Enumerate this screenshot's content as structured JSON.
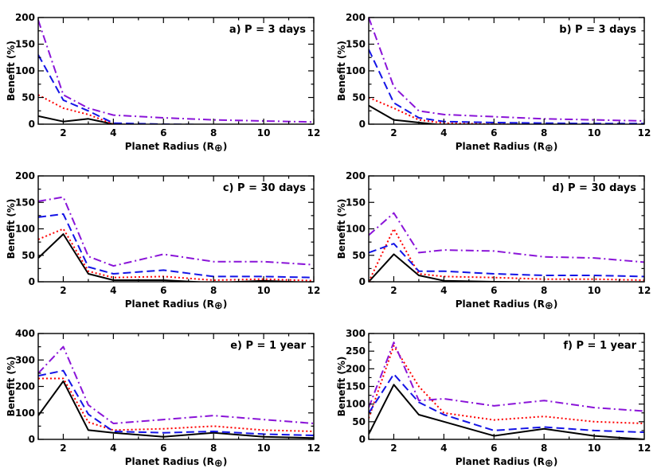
{
  "figure": {
    "x_label": "Planet Radius (R",
    "x_label_symbol": "⊕",
    "x_label_close": ")",
    "y_label": "Benefit (%)",
    "x_ticks": [
      2,
      4,
      6,
      8,
      10,
      12
    ],
    "xlim": [
      1,
      12
    ]
  },
  "chart_data": [
    {
      "type": "line",
      "panel": "a",
      "title": "a) P = 3 days",
      "ylim": [
        0,
        200
      ],
      "y_ticks": [
        0,
        50,
        100,
        150,
        200
      ],
      "x": [
        1,
        2,
        3,
        4,
        6,
        8,
        10,
        12
      ],
      "series": [
        {
          "name": "black-solid",
          "color": "#000000",
          "dash": "",
          "values": [
            15,
            5,
            10,
            0,
            -3,
            -3,
            -3,
            -3
          ]
        },
        {
          "name": "red-dotted",
          "color": "#ff0000",
          "dash": "2,3",
          "values": [
            55,
            30,
            18,
            0,
            -2,
            -3,
            -3,
            -3
          ]
        },
        {
          "name": "blue-dashed",
          "color": "#1414e6",
          "dash": "10,5",
          "values": [
            130,
            45,
            25,
            2,
            0,
            -1,
            -1,
            -1
          ]
        },
        {
          "name": "purple-dashdot",
          "color": "#8a14d8",
          "dash": "10,4,2,4",
          "values": [
            195,
            55,
            30,
            17,
            12,
            8,
            6,
            4
          ]
        }
      ]
    },
    {
      "type": "line",
      "panel": "b",
      "title": "b) P = 3 days",
      "ylim": [
        0,
        200
      ],
      "y_ticks": [
        0,
        50,
        100,
        150,
        200
      ],
      "x": [
        1,
        2,
        3,
        4,
        6,
        8,
        10,
        12
      ],
      "series": [
        {
          "name": "black-solid",
          "color": "#000000",
          "dash": "",
          "values": [
            35,
            8,
            3,
            -2,
            -3,
            -3,
            -3,
            -3
          ]
        },
        {
          "name": "red-dotted",
          "color": "#ff0000",
          "dash": "2,3",
          "values": [
            50,
            30,
            8,
            2,
            0,
            -1,
            -1,
            -1
          ]
        },
        {
          "name": "blue-dashed",
          "color": "#1414e6",
          "dash": "10,5",
          "values": [
            140,
            40,
            12,
            5,
            3,
            2,
            1,
            1
          ]
        },
        {
          "name": "purple-dashdot",
          "color": "#8a14d8",
          "dash": "10,4,2,4",
          "values": [
            200,
            70,
            25,
            18,
            14,
            10,
            8,
            6
          ]
        }
      ]
    },
    {
      "type": "line",
      "panel": "c",
      "title": "c) P = 30 days",
      "ylim": [
        0,
        200
      ],
      "y_ticks": [
        0,
        50,
        100,
        150,
        200
      ],
      "x": [
        1,
        2,
        3,
        4,
        6,
        8,
        10,
        12
      ],
      "series": [
        {
          "name": "black-solid",
          "color": "#000000",
          "dash": "",
          "values": [
            45,
            90,
            15,
            3,
            3,
            -2,
            2,
            -2
          ]
        },
        {
          "name": "red-dotted",
          "color": "#ff0000",
          "dash": "2,3",
          "values": [
            80,
            100,
            20,
            8,
            10,
            3,
            5,
            2
          ]
        },
        {
          "name": "blue-dashed",
          "color": "#1414e6",
          "dash": "10,5",
          "values": [
            122,
            128,
            28,
            15,
            22,
            10,
            10,
            8
          ]
        },
        {
          "name": "purple-dashdot",
          "color": "#8a14d8",
          "dash": "10,4,2,4",
          "values": [
            152,
            160,
            48,
            30,
            52,
            38,
            38,
            32
          ]
        }
      ]
    },
    {
      "type": "line",
      "panel": "d",
      "title": "d) P = 30 days",
      "ylim": [
        0,
        200
      ],
      "y_ticks": [
        0,
        50,
        100,
        150,
        200
      ],
      "x": [
        1,
        2,
        3,
        4,
        6,
        8,
        10,
        12
      ],
      "series": [
        {
          "name": "black-solid",
          "color": "#000000",
          "dash": "",
          "values": [
            0,
            52,
            12,
            2,
            0,
            -1,
            -1,
            -2
          ]
        },
        {
          "name": "red-dotted",
          "color": "#ff0000",
          "dash": "2,3",
          "values": [
            0,
            100,
            15,
            10,
            8,
            5,
            5,
            3
          ]
        },
        {
          "name": "blue-dashed",
          "color": "#1414e6",
          "dash": "10,5",
          "values": [
            55,
            72,
            20,
            20,
            15,
            12,
            12,
            10
          ]
        },
        {
          "name": "purple-dashdot",
          "color": "#8a14d8",
          "dash": "10,4,2,4",
          "values": [
            88,
            130,
            55,
            60,
            58,
            47,
            45,
            37
          ]
        }
      ]
    },
    {
      "type": "line",
      "panel": "e",
      "title": "e) P = 1 year",
      "ylim": [
        0,
        400
      ],
      "y_ticks": [
        0,
        100,
        200,
        300,
        400
      ],
      "x": [
        1,
        2,
        3,
        4,
        6,
        8,
        10,
        12
      ],
      "series": [
        {
          "name": "black-solid",
          "color": "#000000",
          "dash": "",
          "values": [
            90,
            220,
            35,
            25,
            10,
            25,
            10,
            5
          ]
        },
        {
          "name": "red-dotted",
          "color": "#ff0000",
          "dash": "2,3",
          "values": [
            230,
            230,
            65,
            35,
            40,
            50,
            35,
            30
          ]
        },
        {
          "name": "blue-dashed",
          "color": "#1414e6",
          "dash": "10,5",
          "values": [
            240,
            260,
            95,
            30,
            25,
            30,
            20,
            15
          ]
        },
        {
          "name": "purple-dashdot",
          "color": "#8a14d8",
          "dash": "10,4,2,4",
          "values": [
            250,
            350,
            130,
            60,
            75,
            90,
            75,
            60
          ]
        }
      ]
    },
    {
      "type": "line",
      "panel": "f",
      "title": "f) P = 1 year",
      "ylim": [
        0,
        300
      ],
      "y_ticks": [
        0,
        50,
        100,
        150,
        200,
        250,
        300
      ],
      "x": [
        1,
        2,
        3,
        4,
        6,
        8,
        10,
        12
      ],
      "series": [
        {
          "name": "black-solid",
          "color": "#000000",
          "dash": "",
          "values": [
            15,
            155,
            70,
            50,
            10,
            30,
            10,
            0
          ]
        },
        {
          "name": "red-dotted",
          "color": "#ff0000",
          "dash": "2,3",
          "values": [
            60,
            265,
            150,
            75,
            55,
            65,
            50,
            45
          ]
        },
        {
          "name": "blue-dashed",
          "color": "#1414e6",
          "dash": "10,5",
          "values": [
            75,
            185,
            105,
            70,
            25,
            35,
            25,
            20
          ]
        },
        {
          "name": "purple-dashdot",
          "color": "#8a14d8",
          "dash": "10,4,2,4",
          "values": [
            90,
            275,
            110,
            115,
            95,
            110,
            90,
            80
          ]
        }
      ]
    }
  ]
}
